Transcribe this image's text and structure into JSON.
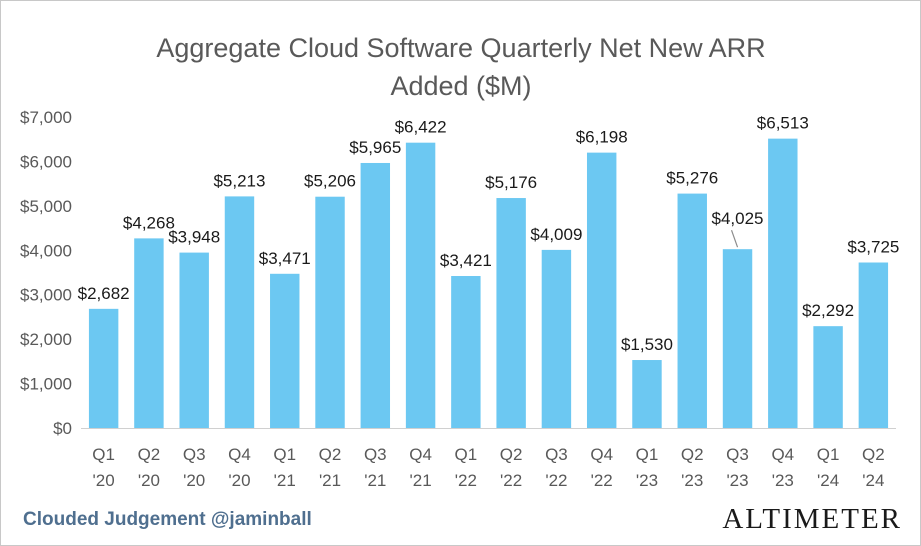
{
  "chart_data": {
    "type": "bar",
    "title_lines": [
      "Aggregate Cloud Software Quarterly Net New ARR",
      "Added ($M)"
    ],
    "categories": [
      [
        "Q1",
        "'20"
      ],
      [
        "Q2",
        "'20"
      ],
      [
        "Q3",
        "'20"
      ],
      [
        "Q4",
        "'20"
      ],
      [
        "Q1",
        "'21"
      ],
      [
        "Q2",
        "'21"
      ],
      [
        "Q3",
        "'21"
      ],
      [
        "Q4",
        "'21"
      ],
      [
        "Q1",
        "'22"
      ],
      [
        "Q2",
        "'22"
      ],
      [
        "Q3",
        "'22"
      ],
      [
        "Q4",
        "'22"
      ],
      [
        "Q1",
        "'23"
      ],
      [
        "Q2",
        "'23"
      ],
      [
        "Q3",
        "'23"
      ],
      [
        "Q4",
        "'23"
      ],
      [
        "Q1",
        "'24"
      ],
      [
        "Q2",
        "'24"
      ]
    ],
    "values": [
      2682,
      4268,
      3948,
      5213,
      3471,
      5206,
      5965,
      6422,
      3421,
      5176,
      4009,
      6198,
      1530,
      5276,
      4025,
      6513,
      2292,
      3725
    ],
    "data_labels": [
      "$2,682",
      "$4,268",
      "$3,948",
      "$5,213",
      "$3,471",
      "$5,206",
      "$5,965",
      "$6,422",
      "$3,421",
      "$5,176",
      "$4,009",
      "$6,198",
      "$1,530",
      "$5,276",
      "$4,025",
      "$6,513",
      "$2,292",
      "$3,725"
    ],
    "yticks": [
      0,
      1000,
      2000,
      3000,
      4000,
      5000,
      6000,
      7000
    ],
    "ytick_labels": [
      "$0",
      "$1,000",
      "$2,000",
      "$3,000",
      "$4,000",
      "$5,000",
      "$6,000",
      "$7,000"
    ],
    "ylim": [
      0,
      7000
    ],
    "grid": false,
    "legend": "none",
    "bar_color": "#6cc8f2"
  },
  "footer": {
    "left_text": "Clouded Judgement @jaminball",
    "right_text": "ALTIMETER"
  }
}
